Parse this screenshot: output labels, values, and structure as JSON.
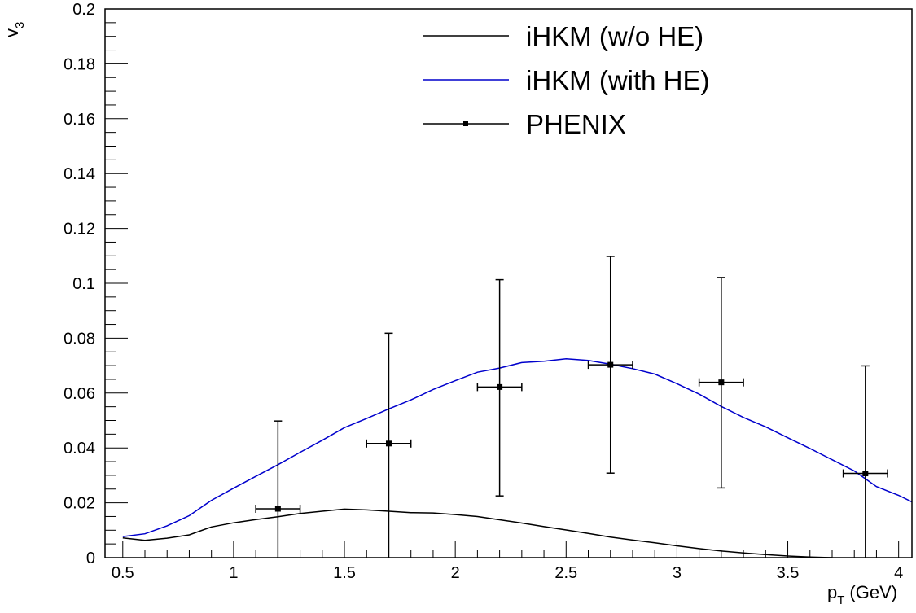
{
  "chart_data": {
    "type": "line",
    "xlabel": {
      "main": "p",
      "sub": "T",
      "unit": "(GeV)"
    },
    "ylabel": {
      "main": "v",
      "sub": "3"
    },
    "xlim": [
      0.42,
      4.06
    ],
    "ylim": [
      0,
      0.2
    ],
    "x_ticks": [
      {
        "value": 0.5,
        "label": "0.5"
      },
      {
        "value": 1,
        "label": "1"
      },
      {
        "value": 1.5,
        "label": "1.5"
      },
      {
        "value": 2,
        "label": "2"
      },
      {
        "value": 2.5,
        "label": "2.5"
      },
      {
        "value": 3,
        "label": "3"
      },
      {
        "value": 3.5,
        "label": "3.5"
      },
      {
        "value": 4,
        "label": "4"
      }
    ],
    "y_ticks": [
      {
        "value": 0,
        "label": "0"
      },
      {
        "value": 0.02,
        "label": "0.02"
      },
      {
        "value": 0.04,
        "label": "0.04"
      },
      {
        "value": 0.06,
        "label": "0.06"
      },
      {
        "value": 0.08,
        "label": "0.08"
      },
      {
        "value": 0.1,
        "label": "0.1"
      },
      {
        "value": 0.12,
        "label": "0.12"
      },
      {
        "value": 0.14,
        "label": "0.14"
      },
      {
        "value": 0.16,
        "label": "0.16"
      },
      {
        "value": 0.18,
        "label": "0.18"
      },
      {
        "value": 0.2,
        "label": "0.2"
      }
    ],
    "grid": false,
    "legend_position": "top-right",
    "series": [
      {
        "name": "iHKM (w/o HE)",
        "kind": "line",
        "color": "#000000",
        "x": [
          0.5,
          0.6,
          0.7,
          0.8,
          0.9,
          1.0,
          1.1,
          1.2,
          1.3,
          1.4,
          1.5,
          1.6,
          1.7,
          1.8,
          1.9,
          2.0,
          2.1,
          2.2,
          2.3,
          2.4,
          2.5,
          2.6,
          2.7,
          2.8,
          2.9,
          3.0,
          3.1,
          3.2,
          3.3,
          3.4,
          3.5,
          3.6,
          3.7
        ],
        "y": [
          0.0072,
          0.0063,
          0.0071,
          0.0083,
          0.0112,
          0.0127,
          0.0139,
          0.0149,
          0.0161,
          0.0169,
          0.0177,
          0.0174,
          0.0169,
          0.0164,
          0.0163,
          0.0157,
          0.015,
          0.0138,
          0.0126,
          0.0113,
          0.0101,
          0.0088,
          0.0075,
          0.0064,
          0.0054,
          0.0043,
          0.0033,
          0.0024,
          0.0017,
          0.0011,
          0.0006,
          0.0002,
          0.0
        ]
      },
      {
        "name": "iHKM (with HE)",
        "kind": "line",
        "color": "#0000cc",
        "x": [
          0.5,
          0.6,
          0.7,
          0.8,
          0.9,
          1.0,
          1.1,
          1.2,
          1.3,
          1.4,
          1.5,
          1.6,
          1.7,
          1.8,
          1.9,
          2.0,
          2.1,
          2.2,
          2.3,
          2.4,
          2.5,
          2.6,
          2.7,
          2.8,
          2.9,
          3.0,
          3.1,
          3.2,
          3.3,
          3.4,
          3.5,
          3.6,
          3.7,
          3.8,
          3.9,
          4.0,
          4.06
        ],
        "y": [
          0.0077,
          0.0087,
          0.0116,
          0.0153,
          0.0209,
          0.0253,
          0.0296,
          0.0339,
          0.0384,
          0.0428,
          0.0474,
          0.0507,
          0.0542,
          0.0575,
          0.0613,
          0.0645,
          0.0676,
          0.0691,
          0.0711,
          0.0716,
          0.0725,
          0.0719,
          0.0705,
          0.0689,
          0.0669,
          0.0634,
          0.0596,
          0.0551,
          0.0511,
          0.0477,
          0.0437,
          0.0398,
          0.0357,
          0.0316,
          0.0259,
          0.0227,
          0.0203
        ]
      },
      {
        "name": "PHENIX",
        "kind": "errorbar",
        "color": "#000000",
        "points": [
          {
            "x": 1.2,
            "y": 0.0178,
            "xerr": 0.1,
            "ylow": 0.0,
            "yhigh": 0.0498
          },
          {
            "x": 1.7,
            "y": 0.0416,
            "xerr": 0.1,
            "ylow": 0.0,
            "yhigh": 0.0818
          },
          {
            "x": 2.2,
            "y": 0.0622,
            "xerr": 0.1,
            "ylow": 0.0225,
            "yhigh": 0.1013
          },
          {
            "x": 2.7,
            "y": 0.0703,
            "xerr": 0.1,
            "ylow": 0.0308,
            "yhigh": 0.1098
          },
          {
            "x": 3.2,
            "y": 0.0639,
            "xerr": 0.1,
            "ylow": 0.0254,
            "yhigh": 0.1021
          },
          {
            "x": 3.85,
            "y": 0.0307,
            "xerr": 0.1,
            "ylow": 0.0,
            "yhigh": 0.0699
          }
        ]
      }
    ]
  }
}
